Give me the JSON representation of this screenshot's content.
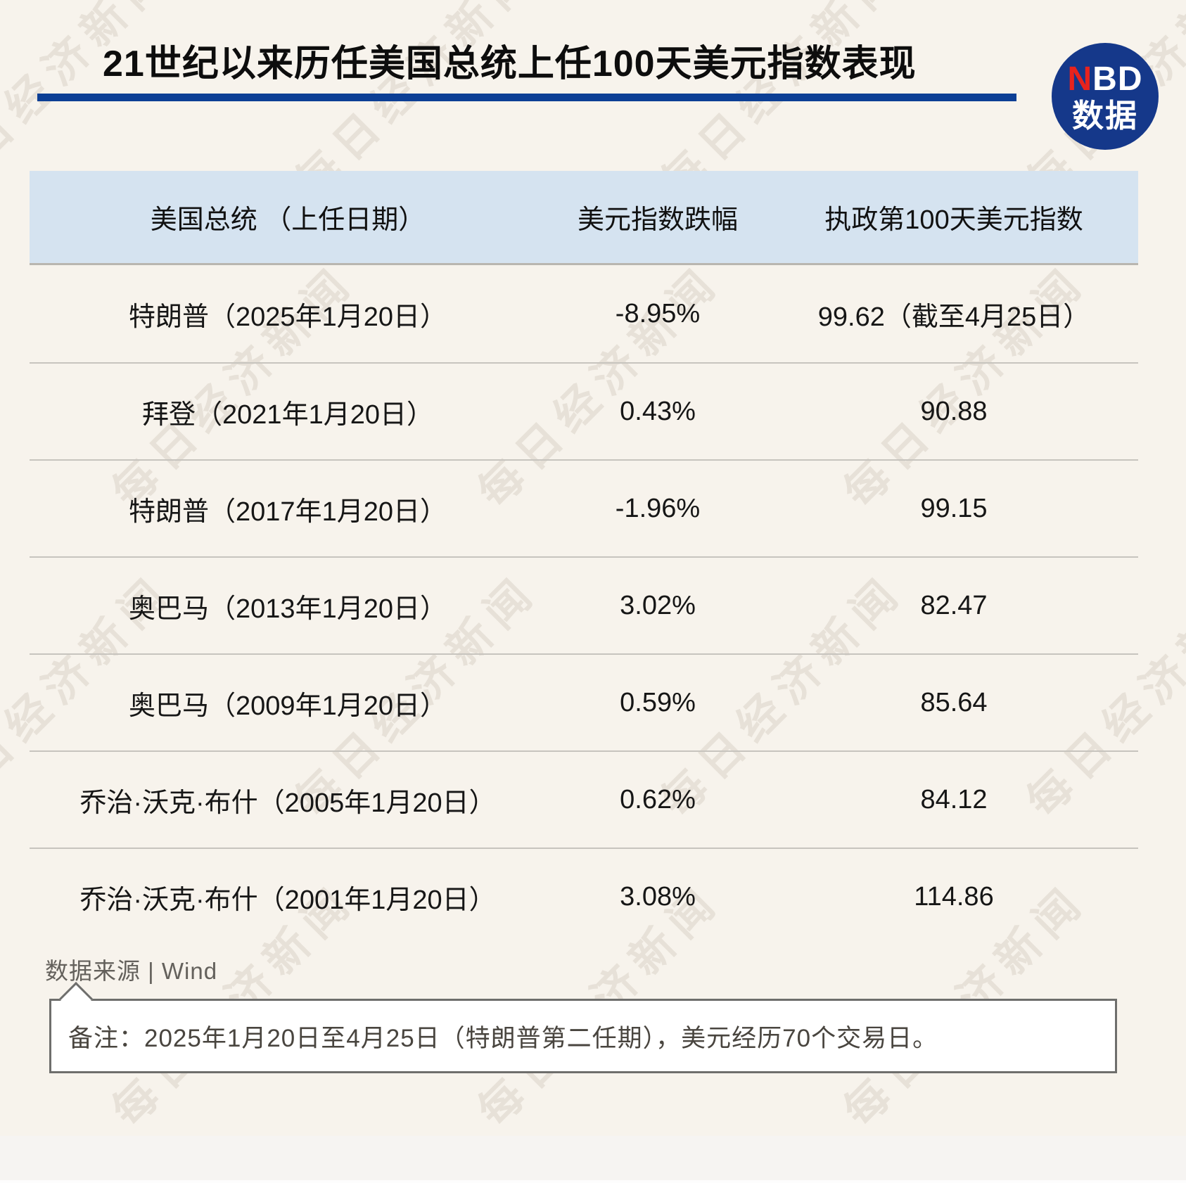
{
  "title": "21世纪以来历任美国总统上任100天美元指数表现",
  "logo": {
    "nbd_red": "N",
    "nbd_rest": "BD",
    "cn": "数据"
  },
  "table": {
    "headers": [
      "美国总统 （上任日期）",
      "美元指数跌幅",
      "执政第100天美元指数"
    ],
    "rows": [
      [
        "特朗普（2025年1月20日）",
        "-8.95%",
        "99.62（截至4月25日）"
      ],
      [
        "拜登（2021年1月20日）",
        "0.43%",
        "90.88"
      ],
      [
        "特朗普（2017年1月20日）",
        "-1.96%",
        "99.15"
      ],
      [
        "奥巴马（2013年1月20日）",
        "3.02%",
        "82.47"
      ],
      [
        "奥巴马（2009年1月20日）",
        "0.59%",
        "85.64"
      ],
      [
        "乔治·沃克·布什（2005年1月20日）",
        "0.62%",
        "84.12"
      ],
      [
        "乔治·沃克·布什（2001年1月20日）",
        "3.08%",
        "114.86"
      ]
    ]
  },
  "source": "数据来源 | Wind",
  "note": "备注：2025年1月20日至4月25日（特朗普第二任期），美元经历70个交易日。",
  "watermark": "每日经济新闻",
  "colors": {
    "page_bg": "#f7f3ec",
    "header_bg": "#d5e3f0",
    "underline_blue": "#0c3f95",
    "logo_blue": "#15388a",
    "logo_red": "#e8231d",
    "divider_gray": "#c7c4be"
  },
  "chart_data": {
    "type": "table",
    "title": "21世纪以来历任美国总统上任100天美元指数表现",
    "columns": [
      "美国总统（上任日期）",
      "美元指数跌幅",
      "执政第100天美元指数"
    ],
    "categories": [
      "特朗普 2025-01-20",
      "拜登 2021-01-20",
      "特朗普 2017-01-20",
      "奥巴马 2013-01-20",
      "奥巴马 2009-01-20",
      "乔治·沃克·布什 2005-01-20",
      "乔治·沃克·布什 2001-01-20"
    ],
    "series": [
      {
        "name": "美元指数跌幅(%)",
        "values": [
          -8.95,
          0.43,
          -1.96,
          3.02,
          0.59,
          0.62,
          3.08
        ]
      },
      {
        "name": "执政第100天美元指数",
        "values": [
          99.62,
          90.88,
          99.15,
          82.47,
          85.64,
          84.12,
          114.86
        ]
      }
    ],
    "annotations": [
      "99.62 为截至4月25日数据"
    ],
    "source": "Wind",
    "note": "备注：2025年1月20日至4月25日（特朗普第二任期），美元经历70个交易日。"
  }
}
